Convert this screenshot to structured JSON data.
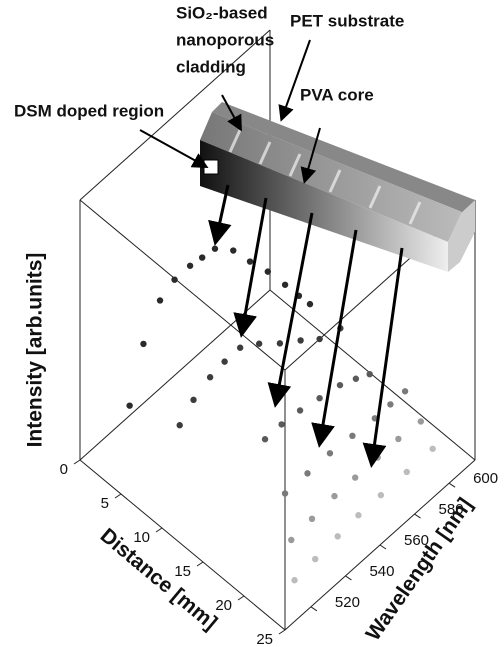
{
  "chart_data": {
    "type": "scatter3d",
    "annotations": {
      "cladding_line1": "SiO₂-based",
      "cladding_line2": "nanoporous",
      "cladding_line3": "cladding",
      "substrate": "PET substrate",
      "core": "PVA core",
      "doped": "DSM doped region"
    },
    "xlabel": "Distance [mm]",
    "ylabel": "Wavelength [nm]",
    "zlabel": "Intensity [arb.units]",
    "xlim": [
      0,
      25
    ],
    "xticks": [
      0,
      5,
      10,
      15,
      20,
      25
    ],
    "ylim": [
      505,
      615
    ],
    "yticks": [
      520,
      540,
      560,
      580,
      600
    ],
    "zlim": [
      0,
      1
    ],
    "series": [
      {
        "color": "#2a2a2a",
        "distance": 5,
        "x": [
          510,
          518,
          527.6,
          536,
          545,
          552,
          559.4,
          570,
          579.7,
          590,
          600,
          608,
          614.4
        ],
        "values": [
          0.31,
          0.5,
          0.61,
          0.64,
          0.64,
          0.63,
          0.62,
          0.55,
          0.45,
          0.35,
          0.24,
          0.15,
          0.08
        ]
      },
      {
        "color": "#3c3c3c",
        "distance": 9,
        "x": [
          520,
          528,
          537.6,
          546,
          555,
          566,
          578,
          590,
          601,
          613
        ],
        "values": [
          0.28,
          0.33,
          0.36,
          0.37,
          0.37,
          0.32,
          0.25,
          0.19,
          0.13,
          0.1
        ]
      },
      {
        "color": "#5a5a5a",
        "distance": 13,
        "x": [
          550.4,
          560,
          570.7,
          582,
          593.8,
          603,
          611
        ],
        "values": [
          0.15,
          0.15,
          0.14,
          0.12,
          0.1,
          0.07,
          0.04
        ]
      },
      {
        "color": "#7a7a7a",
        "distance": 17,
        "x": [
          543,
          556,
          569,
          582,
          595,
          604,
          612.5
        ],
        "values": [
          0.09,
          0.09,
          0.09,
          0.08,
          0.07,
          0.07,
          0.07
        ]
      },
      {
        "color": "#9a9a9a",
        "distance": 20.5,
        "x": [
          530,
          542,
          555,
          567,
          580,
          592,
          605
        ],
        "values": [
          0.08,
          0.09,
          0.1,
          0.1,
          0.1,
          0.1,
          0.09
        ]
      },
      {
        "color": "#bcbcbc",
        "distance": 23,
        "x": [
          520,
          532,
          545,
          557,
          570,
          585,
          600
        ],
        "values": [
          0.05,
          0.06,
          0.07,
          0.08,
          0.08,
          0.08,
          0.08
        ]
      }
    ]
  }
}
